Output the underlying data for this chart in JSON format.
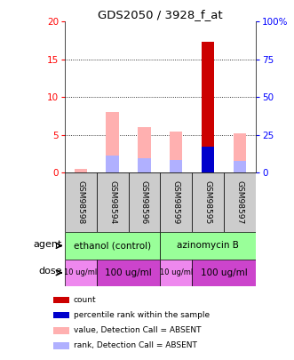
{
  "title": "GDS2050 / 3928_f_at",
  "samples": [
    "GSM98598",
    "GSM98594",
    "GSM98596",
    "GSM98599",
    "GSM98595",
    "GSM98597"
  ],
  "left_ylim": [
    0,
    20
  ],
  "right_ylim": [
    0,
    100
  ],
  "left_yticks": [
    0,
    5,
    10,
    15,
    20
  ],
  "right_yticks": [
    0,
    25,
    50,
    75,
    100
  ],
  "right_yticklabels": [
    "0",
    "25",
    "50",
    "75",
    "100%"
  ],
  "bar_width": 0.4,
  "count_values": [
    0,
    0,
    0,
    0,
    17.3,
    0
  ],
  "percentile_values": [
    0,
    0,
    0,
    0,
    3.5,
    0
  ],
  "absent_value_heights": [
    0.5,
    8.1,
    6.1,
    5.5,
    0,
    5.2
  ],
  "absent_rank_heights": [
    0,
    2.3,
    1.9,
    1.7,
    0,
    1.6
  ],
  "color_count": "#cc0000",
  "color_percentile": "#0000cc",
  "color_absent_value": "#ffb0b0",
  "color_absent_rank": "#b0b0ff",
  "agent_color": "#99ff99",
  "sample_box_color": "#cccccc",
  "legend_items": [
    {
      "color": "#cc0000",
      "label": "count"
    },
    {
      "color": "#0000cc",
      "label": "percentile rank within the sample"
    },
    {
      "color": "#ffb0b0",
      "label": "value, Detection Call = ABSENT"
    },
    {
      "color": "#b0b0ff",
      "label": "rank, Detection Call = ABSENT"
    }
  ]
}
